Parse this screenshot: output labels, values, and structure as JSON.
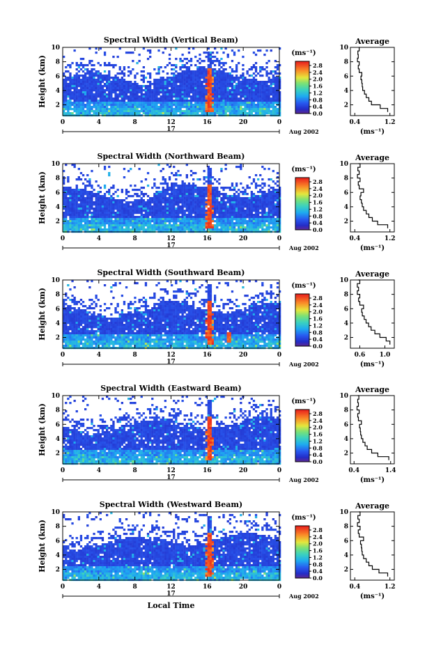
{
  "chart_data": [
    {
      "type": "heatmap",
      "title": "Spectral Width (Vertical Beam)",
      "ylabel": "Height (km)",
      "x_ticks": [
        "0",
        "4",
        "8",
        "12",
        "16",
        "20",
        "0"
      ],
      "date_day": "17",
      "date_label": "Aug 2002",
      "y_ticks": [
        "2",
        "4",
        "6",
        "8",
        "10"
      ],
      "xlim": [
        0,
        24
      ],
      "ylim": [
        0.5,
        10
      ],
      "colorbar": {
        "unit": "(ms⁻¹)",
        "ticks": [
          "0.0",
          "0.4",
          "0.8",
          "1.2",
          "1.6",
          "2.0",
          "2.4",
          "2.8"
        ]
      },
      "average": {
        "title": "Average",
        "x_ticks": [
          "0.4",
          "1.2"
        ],
        "xlim": [
          0.3,
          1.3
        ],
        "xlabel": "(ms⁻¹)",
        "heights": [
          1.0,
          1.5,
          2.0,
          2.5,
          3.0,
          3.5,
          4.0,
          4.5,
          5.0,
          5.5,
          6.0,
          6.5,
          7.0,
          7.5,
          8.0,
          8.5,
          9.0,
          9.5,
          10.0
        ],
        "values": [
          1.15,
          0.98,
          0.78,
          0.72,
          0.66,
          0.62,
          0.58,
          0.57,
          0.56,
          0.54,
          0.56,
          0.5,
          0.48,
          0.5,
          0.46,
          0.48,
          0.47,
          0.5,
          0.49
        ]
      }
    },
    {
      "type": "heatmap",
      "title": "Spectral Width (Northward Beam)",
      "ylabel": "Height (km)",
      "x_ticks": [
        "0",
        "4",
        "8",
        "12",
        "16",
        "20",
        "0"
      ],
      "date_day": "17",
      "date_label": "Aug 2002",
      "y_ticks": [
        "2",
        "4",
        "6",
        "8",
        "10"
      ],
      "xlim": [
        0,
        24
      ],
      "ylim": [
        0.5,
        10
      ],
      "colorbar": {
        "unit": "(ms⁻¹)",
        "ticks": [
          "0.0",
          "0.4",
          "0.8",
          "1.2",
          "1.6",
          "2.0",
          "2.4",
          "2.8"
        ]
      },
      "average": {
        "title": "Average",
        "x_ticks": [
          "0.4",
          "1.2"
        ],
        "xlim": [
          0.3,
          1.3
        ],
        "xlabel": "(ms⁻¹)",
        "heights": [
          1.0,
          1.5,
          2.0,
          2.5,
          3.0,
          3.5,
          4.0,
          4.5,
          5.0,
          5.5,
          6.0,
          6.5,
          7.0,
          7.5,
          8.0,
          8.5,
          9.0,
          9.5,
          10.0
        ],
        "values": [
          1.15,
          0.92,
          0.8,
          0.72,
          0.66,
          0.6,
          0.57,
          0.55,
          0.52,
          0.54,
          0.6,
          0.5,
          0.48,
          0.52,
          0.46,
          0.5,
          0.47,
          0.52,
          0.48
        ]
      }
    },
    {
      "type": "heatmap",
      "title": "Spectral Width (Southward Beam)",
      "ylabel": "Height (km)",
      "x_ticks": [
        "0",
        "4",
        "8",
        "12",
        "16",
        "20",
        "0"
      ],
      "date_day": "17",
      "date_label": "Aug 2002",
      "y_ticks": [
        "2",
        "4",
        "6",
        "8",
        "10"
      ],
      "xlim": [
        0,
        24
      ],
      "ylim": [
        0.5,
        10
      ],
      "colorbar": {
        "unit": "(ms⁻¹)",
        "ticks": [
          "0.0",
          "0.4",
          "0.8",
          "1.2",
          "1.6",
          "2.0",
          "2.4",
          "2.8"
        ]
      },
      "average": {
        "title": "Average",
        "x_ticks": [
          "0.6",
          "1.0"
        ],
        "xlim": [
          0.45,
          1.15
        ],
        "xlabel": "(ms⁻¹)",
        "heights": [
          1.0,
          1.5,
          2.0,
          2.5,
          3.0,
          3.5,
          4.0,
          4.5,
          5.0,
          5.5,
          6.0,
          6.5,
          7.0,
          7.5,
          8.0,
          8.5,
          9.0,
          9.5,
          10.0
        ],
        "values": [
          1.08,
          1.02,
          0.92,
          0.84,
          0.78,
          0.74,
          0.7,
          0.67,
          0.64,
          0.63,
          0.66,
          0.6,
          0.58,
          0.6,
          0.56,
          0.58,
          0.56,
          0.6,
          0.57
        ]
      }
    },
    {
      "type": "heatmap",
      "title": "Spectral Width (Eastward Beam)",
      "ylabel": "Height (km)",
      "x_ticks": [
        "0",
        "4",
        "8",
        "12",
        "16",
        "20",
        "0"
      ],
      "date_day": "17",
      "date_label": "Aug 2002",
      "y_ticks": [
        "2",
        "4",
        "6",
        "8",
        "10"
      ],
      "xlim": [
        0,
        24
      ],
      "ylim": [
        0.5,
        10
      ],
      "colorbar": {
        "unit": "(ms⁻¹)",
        "ticks": [
          "0.0",
          "0.4",
          "0.8",
          "1.2",
          "1.6",
          "2.0",
          "2.4",
          "2.8"
        ]
      },
      "average": {
        "title": "Average",
        "x_ticks": [
          "0.4",
          "1.4"
        ],
        "xlim": [
          0.3,
          1.5
        ],
        "xlabel": "(ms⁻¹)",
        "heights": [
          1.0,
          1.5,
          2.0,
          2.5,
          3.0,
          3.5,
          4.0,
          4.5,
          5.0,
          5.5,
          6.0,
          6.5,
          7.0,
          7.5,
          8.0,
          8.5,
          9.0,
          9.5,
          10.0
        ],
        "values": [
          1.35,
          1.05,
          0.88,
          0.76,
          0.7,
          0.64,
          0.6,
          0.58,
          0.57,
          0.55,
          0.6,
          0.52,
          0.5,
          0.54,
          0.48,
          0.52,
          0.5,
          0.53,
          0.5
        ]
      }
    },
    {
      "type": "heatmap",
      "title": "Spectral Width (Westward Beam)",
      "ylabel": "Height (km)",
      "xlabel": "Local Time",
      "x_ticks": [
        "0",
        "4",
        "8",
        "12",
        "16",
        "20",
        "0"
      ],
      "date_day": "17",
      "date_label": "Aug 2002",
      "y_ticks": [
        "2",
        "4",
        "6",
        "8",
        "10"
      ],
      "xlim": [
        0,
        24
      ],
      "ylim": [
        0.5,
        10
      ],
      "colorbar": {
        "unit": "(ms⁻¹)",
        "ticks": [
          "0.0",
          "0.4",
          "0.8",
          "1.2",
          "1.6",
          "2.0",
          "2.4",
          "2.8"
        ]
      },
      "average": {
        "title": "Average",
        "x_ticks": [
          "0.4",
          "1.2"
        ],
        "xlim": [
          0.3,
          1.3
        ],
        "xlabel": "(ms⁻¹)",
        "heights": [
          1.0,
          1.5,
          2.0,
          2.5,
          3.0,
          3.5,
          4.0,
          4.5,
          5.0,
          5.5,
          6.0,
          6.5,
          7.0,
          7.5,
          8.0,
          8.5,
          9.0,
          9.5,
          10.0
        ],
        "values": [
          1.15,
          0.95,
          0.8,
          0.72,
          0.66,
          0.6,
          0.57,
          0.56,
          0.55,
          0.53,
          0.6,
          0.5,
          0.48,
          0.52,
          0.46,
          0.5,
          0.47,
          0.52,
          0.49
        ]
      }
    }
  ]
}
